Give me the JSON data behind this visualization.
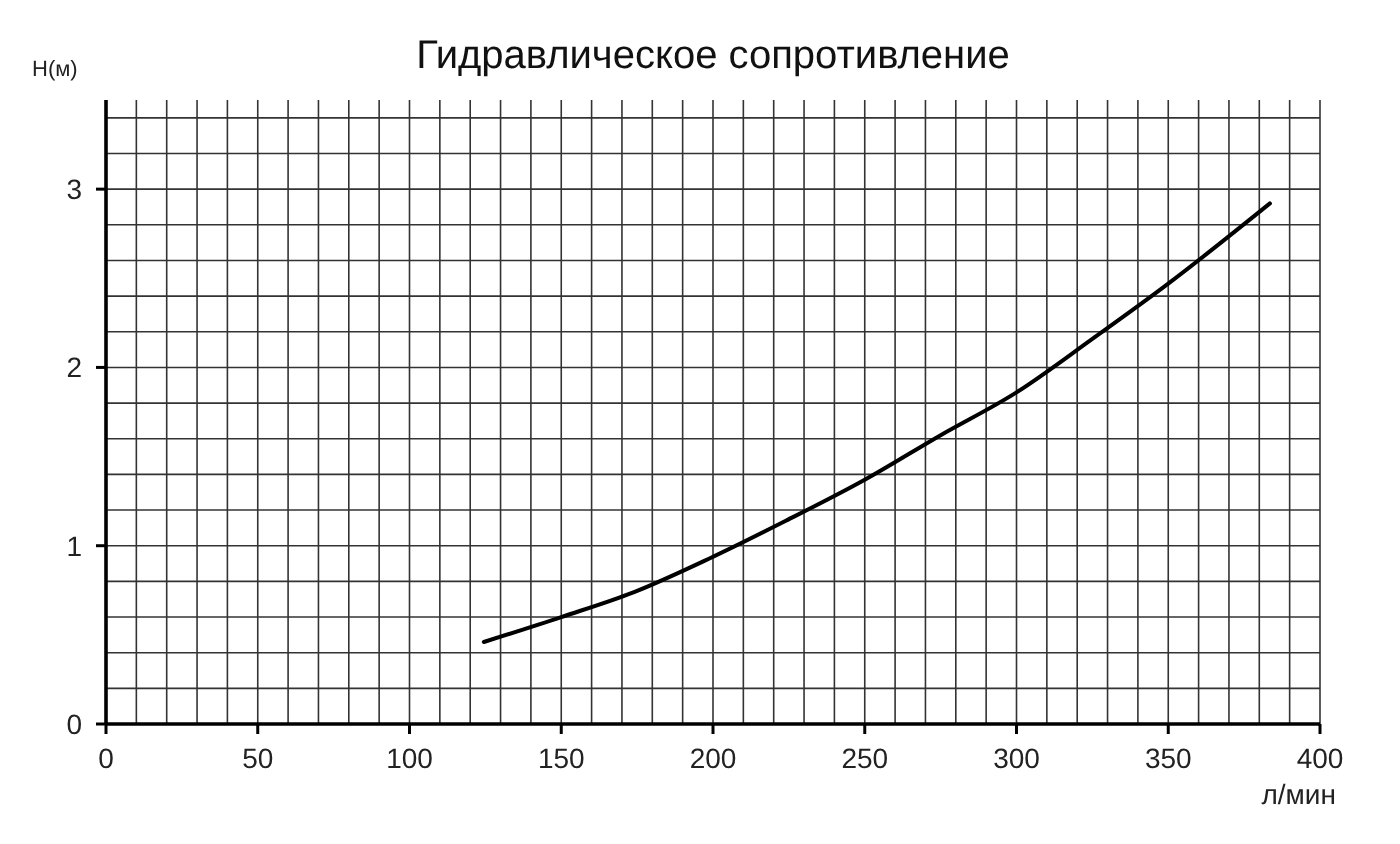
{
  "chart_data": {
    "type": "line",
    "title": "Гидравлическое сопротивление",
    "xlabel": "л/мин",
    "ylabel": "H(м)",
    "x": [
      124.5,
      150,
      174,
      199,
      224,
      250,
      275,
      300,
      325,
      350,
      383.5
    ],
    "series": [
      {
        "color": "#000000",
        "values": [
          0.46,
          0.6,
          0.74,
          0.93,
          1.14,
          1.37,
          1.62,
          1.86,
          2.16,
          2.47,
          2.92
        ]
      }
    ],
    "xlim": [
      0,
      400
    ],
    "ylim": [
      0,
      3.5
    ],
    "xticks": [
      0,
      {
        "value": 10,
        "label": null
      },
      {
        "value": 20,
        "label": null
      },
      {
        "value": 30,
        "label": null
      },
      {
        "value": 40,
        "label": null
      },
      50,
      {
        "value": 60,
        "label": null
      },
      {
        "value": 70,
        "label": null
      },
      {
        "value": 80,
        "label": null
      },
      {
        "value": 90,
        "label": null
      },
      100,
      {
        "value": 110,
        "label": null
      },
      {
        "value": 120,
        "label": null
      },
      {
        "value": 130,
        "label": null
      },
      {
        "value": 140,
        "label": null
      },
      150,
      {
        "value": 160,
        "label": null
      },
      {
        "value": 170,
        "label": null
      },
      {
        "value": 180,
        "label": null
      },
      {
        "value": 190,
        "label": null
      },
      200,
      {
        "value": 210,
        "label": null
      },
      {
        "value": 220,
        "label": null
      },
      {
        "value": 230,
        "label": null
      },
      {
        "value": 240,
        "label": null
      },
      250,
      {
        "value": 260,
        "label": null
      },
      {
        "value": 270,
        "label": null
      },
      {
        "value": 280,
        "label": null
      },
      {
        "value": 290,
        "label": null
      },
      300,
      {
        "value": 310,
        "label": null
      },
      {
        "value": 320,
        "label": null
      },
      {
        "value": 330,
        "label": null
      },
      {
        "value": 340,
        "label": null
      },
      350,
      {
        "value": 360,
        "label": null
      },
      {
        "value": 370,
        "label": null
      },
      {
        "value": 380,
        "label": null
      },
      {
        "value": 390,
        "label": null
      },
      400
    ],
    "yticks": [
      0,
      {
        "value": 0.2,
        "label": null
      },
      {
        "value": 0.4,
        "label": null
      },
      {
        "value": 0.6,
        "label": null
      },
      {
        "value": 0.8,
        "label": null
      },
      1,
      {
        "value": 1.2,
        "label": null
      },
      {
        "value": 1.4,
        "label": null
      },
      {
        "value": 1.6,
        "label": null
      },
      {
        "value": 1.8,
        "label": null
      },
      2,
      {
        "value": 2.2,
        "label": null
      },
      {
        "value": 2.4,
        "label": null
      },
      {
        "value": 2.6,
        "label": null
      },
      {
        "value": 2.8,
        "label": null
      },
      3,
      {
        "value": 3.2,
        "label": null
      },
      {
        "value": 3.4,
        "label": null
      }
    ],
    "grid": true,
    "marker": "none",
    "line_style": "solid"
  }
}
